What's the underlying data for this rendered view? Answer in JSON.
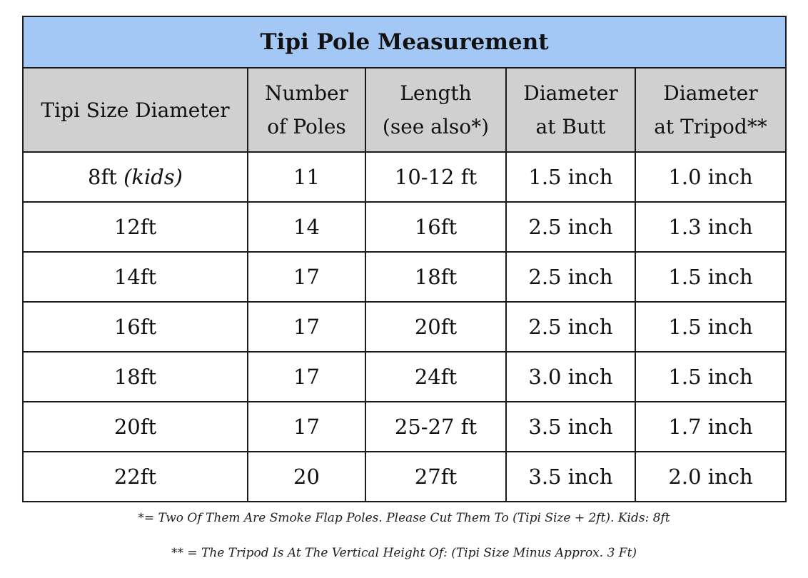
{
  "title": "Tipi Pole Measurement",
  "columns": [
    {
      "line1": "Tipi Size Diameter",
      "line2": ""
    },
    {
      "line1": "Number",
      "line2": "of Poles"
    },
    {
      "line1": "Length",
      "line2": "(see also*)"
    },
    {
      "line1": "Diameter",
      "line2": "at Butt"
    },
    {
      "line1": "Diameter",
      "line2": "at Tripod**"
    }
  ],
  "rows": [
    {
      "size": "8ft",
      "size_note": "(kids)",
      "poles": "11",
      "length": "10-12 ft",
      "butt": "1.5 inch",
      "tripod": "1.0 inch"
    },
    {
      "size": "12ft",
      "size_note": "",
      "poles": "14",
      "length": "16ft",
      "butt": "2.5 inch",
      "tripod": "1.3 inch"
    },
    {
      "size": "14ft",
      "size_note": "",
      "poles": "17",
      "length": "18ft",
      "butt": "2.5 inch",
      "tripod": "1.5 inch"
    },
    {
      "size": "16ft",
      "size_note": "",
      "poles": "17",
      "length": "20ft",
      "butt": "2.5 inch",
      "tripod": "1.5 inch"
    },
    {
      "size": "18ft",
      "size_note": "",
      "poles": "17",
      "length": "24ft",
      "butt": "3.0 inch",
      "tripod": "1.5 inch"
    },
    {
      "size": "20ft",
      "size_note": "",
      "poles": "17",
      "length": "25-27 ft",
      "butt": "3.5 inch",
      "tripod": "1.7 inch"
    },
    {
      "size": "22ft",
      "size_note": "",
      "poles": "20",
      "length": "27ft",
      "butt": "3.5 inch",
      "tripod": "2.0 inch"
    }
  ],
  "footnotes": [
    "*= Two Of Them Are Smoke Flap Poles. Please Cut Them To (Tipi Size + 2ft). Kids: 8ft",
    "** = The Tripod Is At The Vertical Height Of: (Tipi Size Minus Approx. 3 Ft)"
  ],
  "colors": {
    "title_background": "#a4c8f5",
    "header_background": "#d0d0d0",
    "border": "#1a1a1a"
  }
}
